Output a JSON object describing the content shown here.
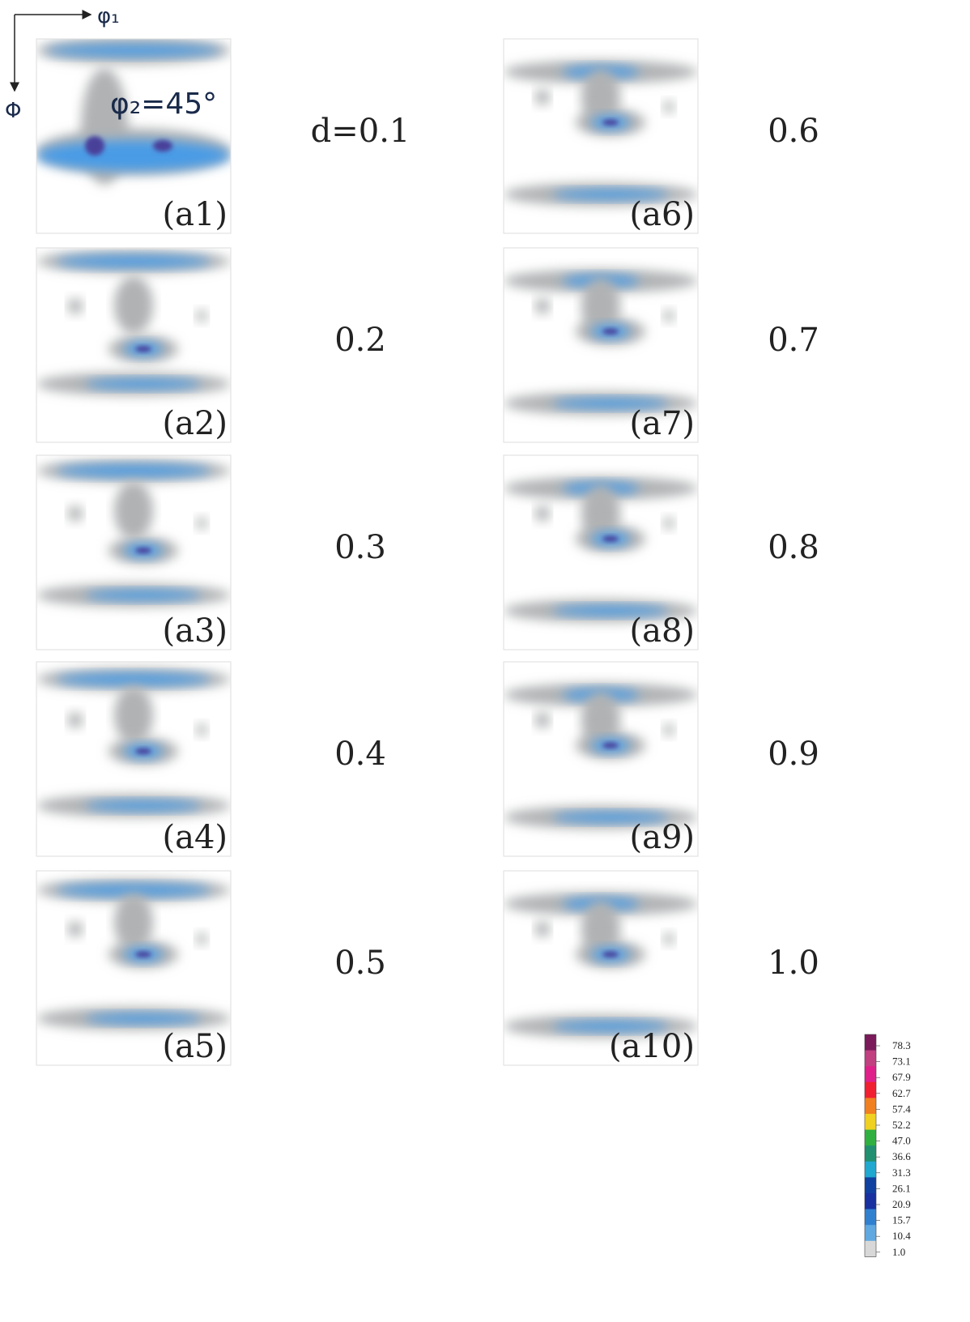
{
  "axes": {
    "x": "φ₁",
    "y": "Φ",
    "section": "φ₂=45°"
  },
  "panels": [
    {
      "label": "(a1)",
      "d": "d=0.1"
    },
    {
      "label": "(a2)",
      "d": "0.2"
    },
    {
      "label": "(a3)",
      "d": "0.3"
    },
    {
      "label": "(a4)",
      "d": "0.4"
    },
    {
      "label": "(a5)",
      "d": "0.5"
    },
    {
      "label": "(a6)",
      "d": "0.6"
    },
    {
      "label": "(a7)",
      "d": "0.7"
    },
    {
      "label": "(a8)",
      "d": "0.8"
    },
    {
      "label": "(a9)",
      "d": "0.9"
    },
    {
      "label": "(a10)",
      "d": "1.0"
    }
  ],
  "colorbar": {
    "ticks": [
      78.3,
      73.1,
      67.9,
      62.7,
      57.4,
      52.2,
      {
        "value": 47,
        "label": "47.0"
      },
      36.6,
      31.3,
      26.1,
      20.9,
      15.7,
      10.4,
      {
        "value": 1,
        "label": "1.0"
      }
    ],
    "colors": [
      "#7a1a5a",
      "#c04080",
      "#e0208a",
      "#f02030",
      "#f08020",
      "#f0d020",
      "#30b040",
      "#209070",
      "#20a8d0",
      "#1040a0",
      "#1830a0",
      "#3080d0",
      "#60a8e0",
      "#d8d8d8"
    ]
  }
}
